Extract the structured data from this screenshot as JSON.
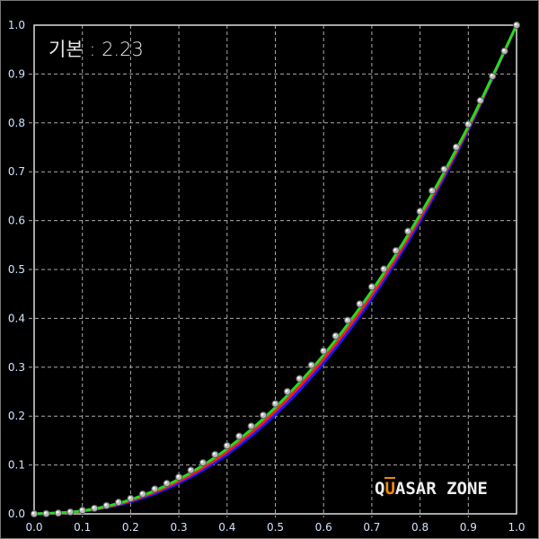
{
  "chart_data": {
    "type": "line",
    "title": "기본 : 2.23",
    "xlim": [
      0,
      1
    ],
    "ylim": [
      0,
      1
    ],
    "grid": true,
    "x_ticks": [
      "0.0",
      "0.1",
      "0.2",
      "0.3",
      "0.4",
      "0.5",
      "0.6",
      "0.7",
      "0.8",
      "0.9",
      "1.0"
    ],
    "y_ticks": [
      "0.0",
      "0.1",
      "0.2",
      "0.3",
      "0.4",
      "0.5",
      "0.6",
      "0.7",
      "0.8",
      "0.9",
      "1.0"
    ],
    "x": [
      0,
      0.1,
      0.2,
      0.3,
      0.4,
      0.5,
      0.6,
      0.7,
      0.8,
      0.9,
      1.0
    ],
    "series": [
      {
        "color": "#1a1aff",
        "values": [
          0,
          0.005,
          0.0247,
          0.0628,
          0.1215,
          0.203,
          0.3088,
          0.4403,
          0.5986,
          0.7852,
          1
        ]
      },
      {
        "color": "#ff1a1a",
        "values": [
          0,
          0.0056,
          0.0268,
          0.0667,
          0.1272,
          0.2102,
          0.3169,
          0.4481,
          0.6054,
          0.7891,
          1
        ]
      },
      {
        "color": "#22dd22",
        "values": [
          0,
          0.0063,
          0.029,
          0.0708,
          0.1332,
          0.2176,
          0.325,
          0.4563,
          0.6121,
          0.7931,
          1
        ]
      }
    ],
    "reference_points": {
      "color": "#bbbbbb",
      "x": [
        0,
        0.025,
        0.05,
        0.075,
        0.1,
        0.125,
        0.15,
        0.175,
        0.2,
        0.225,
        0.25,
        0.275,
        0.3,
        0.325,
        0.35,
        0.375,
        0.4,
        0.425,
        0.45,
        0.475,
        0.5,
        0.525,
        0.55,
        0.575,
        0.6,
        0.625,
        0.65,
        0.675,
        0.7,
        0.725,
        0.75,
        0.775,
        0.8,
        0.825,
        0.85,
        0.875,
        0.9,
        0.925,
        0.95,
        0.975,
        1.0
      ],
      "y": [
        0,
        0.0004,
        0.0016,
        0.0038,
        0.0071,
        0.0114,
        0.0169,
        0.0236,
        0.0314,
        0.0405,
        0.0508,
        0.0623,
        0.0751,
        0.0892,
        0.1047,
        0.1214,
        0.1395,
        0.1589,
        0.1796,
        0.2018,
        0.2253,
        0.2502,
        0.2766,
        0.3043,
        0.3334,
        0.364,
        0.396,
        0.4296,
        0.4645,
        0.5009,
        0.5387,
        0.5781,
        0.619,
        0.6612,
        0.7051,
        0.7505,
        0.7972,
        0.8456,
        0.8956,
        0.947,
        1
      ]
    }
  },
  "watermark": {
    "pre": "Q",
    "accent": "U",
    "post": "ASAR ZONE"
  }
}
